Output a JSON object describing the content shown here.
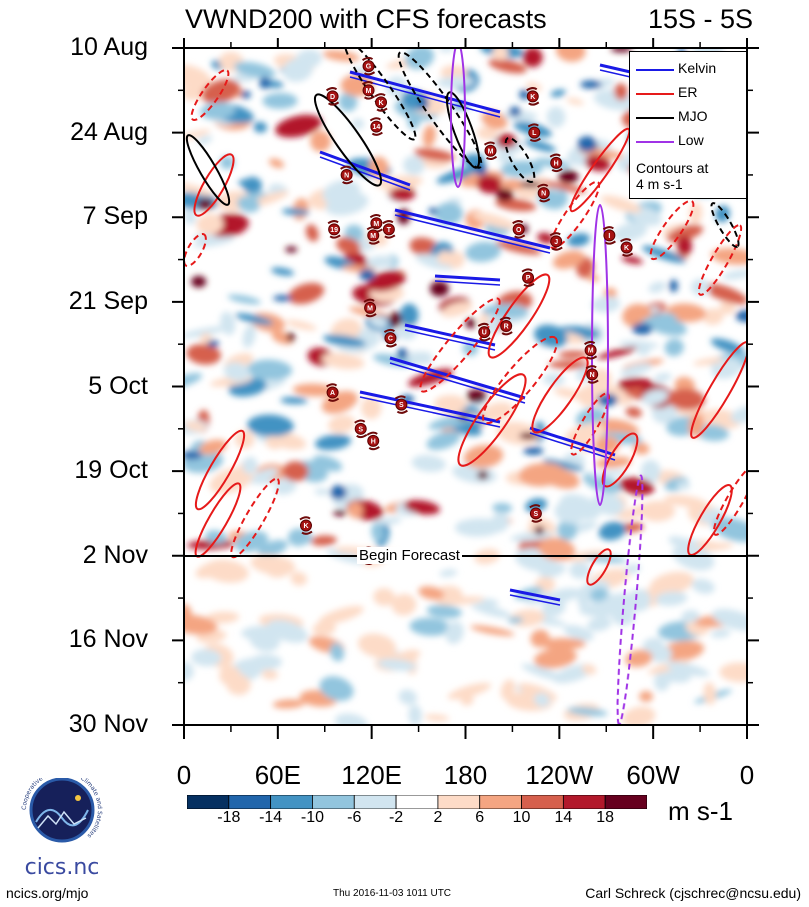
{
  "chart_data": {
    "type": "heatmap",
    "title": "VWND200 with CFS forecasts",
    "region": "15S - 5S",
    "x_ticks": [
      "0",
      "60E",
      "120E",
      "180",
      "120W",
      "60W",
      "0"
    ],
    "x_tick_lon": [
      0,
      60,
      120,
      180,
      240,
      300,
      360
    ],
    "y_ticks": [
      "10 Aug",
      "24 Aug",
      "7 Sep",
      "21 Sep",
      "5 Oct",
      "19 Oct",
      "2 Nov",
      "16 Nov",
      "30 Nov"
    ],
    "y_tick_day": [
      0,
      14,
      28,
      42,
      56,
      70,
      84,
      98,
      112
    ],
    "forecast_start_day": 84,
    "forecast_label": "Begin Forecast",
    "colorbar_labels": [
      "-18",
      "-14",
      "-10",
      "-6",
      "-2",
      "2",
      "6",
      "10",
      "14",
      "18"
    ],
    "colorbar_colors": [
      "#053061",
      "#2166ac",
      "#4393c3",
      "#92c5de",
      "#d1e5f0",
      "#ffffff",
      "#fddbc7",
      "#f4a582",
      "#d6604d",
      "#b2182b",
      "#67001f"
    ],
    "units": "m s-1",
    "legend": [
      {
        "label": "Kelvin",
        "color": "#1a1ae6"
      },
      {
        "label": "ER",
        "color": "#e61a1a"
      },
      {
        "label": "MJO",
        "color": "#000000"
      },
      {
        "label": "Low",
        "color": "#a033e6"
      }
    ],
    "legend_note": [
      "Contours at",
      "4 m s-1"
    ],
    "storms": [
      {
        "label": "G",
        "lon": 118,
        "day": 3
      },
      {
        "label": "D",
        "lon": 95,
        "day": 8
      },
      {
        "label": "M",
        "lon": 118,
        "day": 7
      },
      {
        "label": "K",
        "lon": 126,
        "day": 9
      },
      {
        "label": "K",
        "lon": 223,
        "day": 8
      },
      {
        "label": "14",
        "lon": 123,
        "day": 13
      },
      {
        "label": "L",
        "lon": 224,
        "day": 14
      },
      {
        "label": "M",
        "lon": 196,
        "day": 17
      },
      {
        "label": "H",
        "lon": 238,
        "day": 19
      },
      {
        "label": "N",
        "lon": 104,
        "day": 21
      },
      {
        "label": "N",
        "lon": 230,
        "day": 24
      },
      {
        "label": "M",
        "lon": 123,
        "day": 29
      },
      {
        "label": "19",
        "lon": 96,
        "day": 30
      },
      {
        "label": "M",
        "lon": 121,
        "day": 31
      },
      {
        "label": "T",
        "lon": 131,
        "day": 30
      },
      {
        "label": "O",
        "lon": 214,
        "day": 30
      },
      {
        "label": "J",
        "lon": 238,
        "day": 32
      },
      {
        "label": "I",
        "lon": 272,
        "day": 31
      },
      {
        "label": "K",
        "lon": 283,
        "day": 33
      },
      {
        "label": "P",
        "lon": 220,
        "day": 38
      },
      {
        "label": "M",
        "lon": 119,
        "day": 43
      },
      {
        "label": "U",
        "lon": 192,
        "day": 47
      },
      {
        "label": "R",
        "lon": 206,
        "day": 46
      },
      {
        "label": "C",
        "lon": 132,
        "day": 48
      },
      {
        "label": "M",
        "lon": 260,
        "day": 50
      },
      {
        "label": "N",
        "lon": 261,
        "day": 54
      },
      {
        "label": "A",
        "lon": 95,
        "day": 57
      },
      {
        "label": "S",
        "lon": 139,
        "day": 59
      },
      {
        "label": "S",
        "lon": 113,
        "day": 63
      },
      {
        "label": "H",
        "lon": 121,
        "day": 65
      },
      {
        "label": "S",
        "lon": 225,
        "day": 77
      },
      {
        "label": "K",
        "lon": 78,
        "day": 79
      },
      {
        "label": "2",
        "lon": 118,
        "day": 84
      }
    ],
    "wave_overlays": "Kelvin, ER, MJO and Low filtered anomaly contours (positive solid, negative dashed)"
  },
  "footer": {
    "left": "ncics.org/mjo",
    "middle": "Thu 2016-11-03 1011 UTC",
    "right": "Carl Schreck (cjschrec@ncsu.edu)"
  },
  "logo": {
    "text": "cics.nc",
    "ring_text": "Cooperative Institute for Climate and Satellites"
  }
}
